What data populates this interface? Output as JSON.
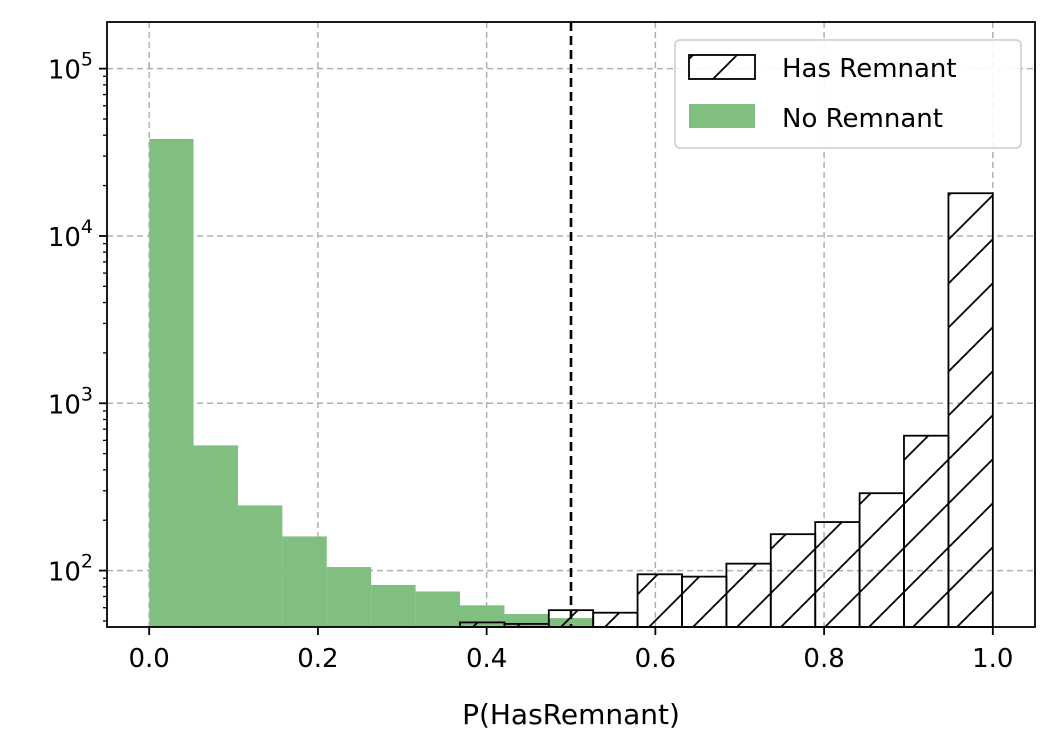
{
  "chart_data": {
    "type": "bar",
    "title": "",
    "xlabel": "P(HasRemnant)",
    "ylabel": "",
    "xlim": [
      -0.05,
      1.05
    ],
    "ylim": [
      46,
      190000
    ],
    "yscale": "log",
    "grid": true,
    "legend_position": "top-right",
    "bin_edges": [
      0.0,
      0.0526,
      0.1053,
      0.1579,
      0.2105,
      0.2632,
      0.3158,
      0.3684,
      0.4211,
      0.4737,
      0.5263,
      0.5789,
      0.6316,
      0.6842,
      0.7368,
      0.7895,
      0.8421,
      0.8947,
      0.9474,
      1.0
    ],
    "threshold": 0.5,
    "x_ticks": [
      0.0,
      0.2,
      0.4,
      0.6,
      0.8,
      1.0
    ],
    "x_tick_labels": [
      "0.0",
      "0.2",
      "0.4",
      "0.6",
      "0.8",
      "1.0"
    ],
    "y_ticks": [
      {
        "value": 100,
        "base": "10",
        "exp": "2"
      },
      {
        "value": 1000,
        "base": "10",
        "exp": "3"
      },
      {
        "value": 10000,
        "base": "10",
        "exp": "4"
      },
      {
        "value": 100000,
        "base": "10",
        "exp": "5"
      }
    ],
    "series": [
      {
        "name": "No Remnant",
        "color": "#80bf80",
        "style": "filled",
        "values": [
          38000,
          560,
          245,
          160,
          105,
          82,
          75,
          62,
          55,
          52,
          0,
          0,
          0,
          0,
          0,
          0,
          0,
          0,
          0
        ]
      },
      {
        "name": "Has Remnant",
        "color": "#000000",
        "style": "hatched",
        "values": [
          0,
          0,
          0,
          0,
          0,
          0,
          0,
          49,
          48,
          58,
          56,
          95,
          92,
          110,
          165,
          195,
          290,
          640,
          18000
        ]
      }
    ]
  }
}
